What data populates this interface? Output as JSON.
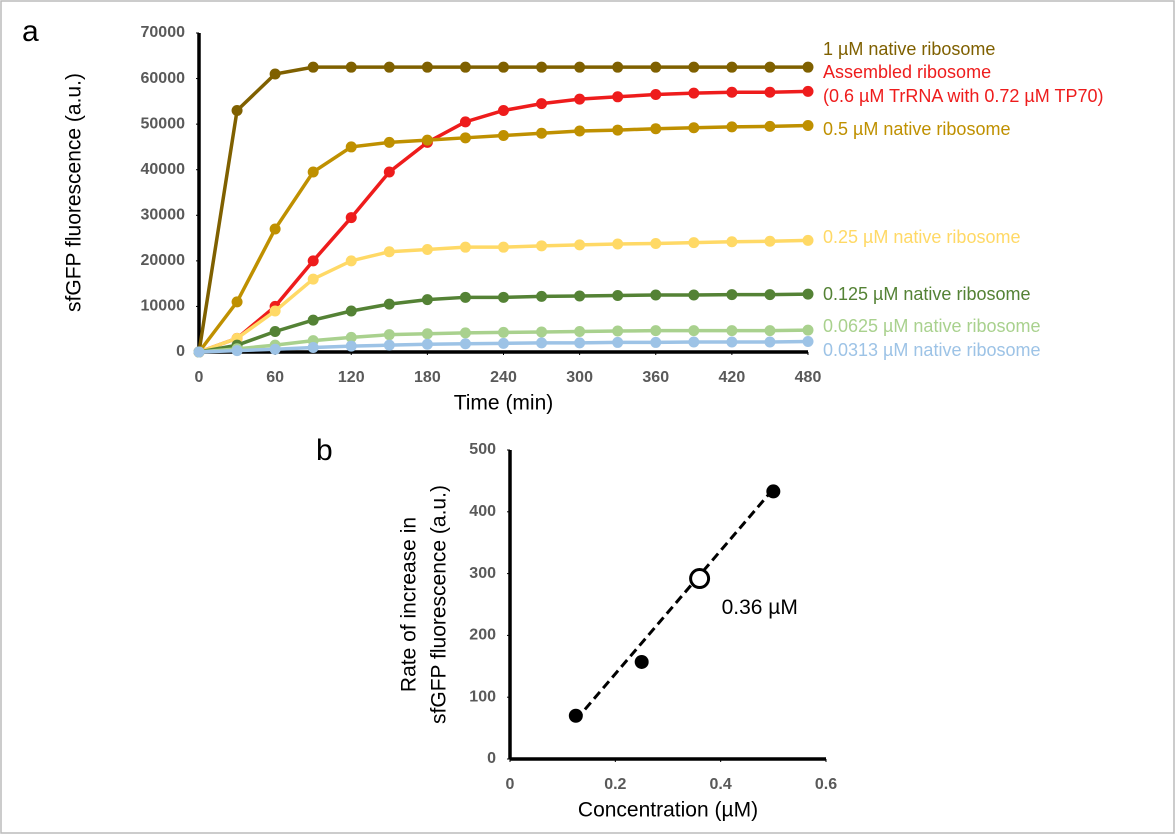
{
  "chart_data": [
    {
      "type": "line",
      "panel_label": "a",
      "xlabel": "Time (min)",
      "ylabel": "sfGFP fluorescence (a.u.)",
      "x": [
        0,
        30,
        60,
        90,
        120,
        150,
        180,
        210,
        240,
        270,
        300,
        330,
        360,
        390,
        420,
        450,
        480
      ],
      "xlim": [
        0,
        480
      ],
      "xticks": [
        0,
        60,
        120,
        180,
        240,
        300,
        360,
        420,
        480
      ],
      "ylim": [
        0,
        70000
      ],
      "yticks": [
        0,
        10000,
        20000,
        30000,
        40000,
        50000,
        60000,
        70000
      ],
      "series": [
        {
          "name": [
            "1 µM native ribosome"
          ],
          "color": "#7f6000",
          "values": [
            0,
            53000,
            61000,
            62500,
            62500,
            62500,
            62500,
            62500,
            62500,
            62500,
            62500,
            62500,
            62500,
            62500,
            62500,
            62500,
            62500
          ]
        },
        {
          "name": [
            "Assembled ribosome",
            "(0.6 µM TrRNA with 0.72 µM TP70)"
          ],
          "color": "#ee1c1c",
          "values": [
            0,
            3000,
            10000,
            20000,
            29500,
            39500,
            46000,
            50500,
            53000,
            54500,
            55500,
            56000,
            56500,
            56800,
            57000,
            57000,
            57200
          ]
        },
        {
          "name": [
            "0.5 µM native ribosome"
          ],
          "color": "#bf9000",
          "values": [
            0,
            11000,
            27000,
            39500,
            45000,
            46000,
            46500,
            47000,
            47500,
            48000,
            48500,
            48700,
            49000,
            49200,
            49400,
            49500,
            49700
          ]
        },
        {
          "name": [
            "0.25 µM native ribosome"
          ],
          "color": "#ffd966",
          "values": [
            0,
            3000,
            9000,
            16000,
            20000,
            22000,
            22500,
            23000,
            23000,
            23300,
            23500,
            23700,
            23800,
            24000,
            24200,
            24300,
            24500
          ]
        },
        {
          "name": [
            "0.125 µM native ribosome"
          ],
          "color": "#548235",
          "values": [
            0,
            1500,
            4500,
            7000,
            9000,
            10500,
            11500,
            12000,
            12000,
            12200,
            12300,
            12400,
            12500,
            12500,
            12600,
            12600,
            12700
          ]
        },
        {
          "name": [
            "0.0625 µM native ribosome"
          ],
          "color": "#a9d18e",
          "values": [
            0,
            700,
            1500,
            2500,
            3200,
            3800,
            4000,
            4200,
            4300,
            4400,
            4500,
            4600,
            4700,
            4700,
            4700,
            4700,
            4800
          ]
        },
        {
          "name": [
            "0.0313 µM native ribosome"
          ],
          "color": "#9dc3e6",
          "values": [
            0,
            300,
            600,
            1000,
            1300,
            1500,
            1700,
            1800,
            1900,
            2000,
            2000,
            2100,
            2100,
            2200,
            2200,
            2200,
            2300
          ]
        }
      ]
    },
    {
      "type": "scatter",
      "panel_label": "b",
      "xlabel": "Concentration (µM)",
      "ylabel": [
        "Rate of increase in",
        "sfGFP fluorescence (a.u.)"
      ],
      "x": [
        0.125,
        0.25,
        0.5
      ],
      "values": [
        70,
        157,
        433
      ],
      "color": "#000000",
      "trendline": {
        "x": [
          0.125,
          0.5
        ],
        "y": [
          63,
          437
        ]
      },
      "highlight": {
        "x": 0.36,
        "y": 292,
        "label": "0.36 µM"
      },
      "xlim": [
        0,
        0.6
      ],
      "xticks": [
        0,
        0.2,
        0.4,
        0.6
      ],
      "ylim": [
        0,
        500
      ],
      "yticks": [
        0,
        100,
        200,
        300,
        400,
        500
      ]
    }
  ]
}
